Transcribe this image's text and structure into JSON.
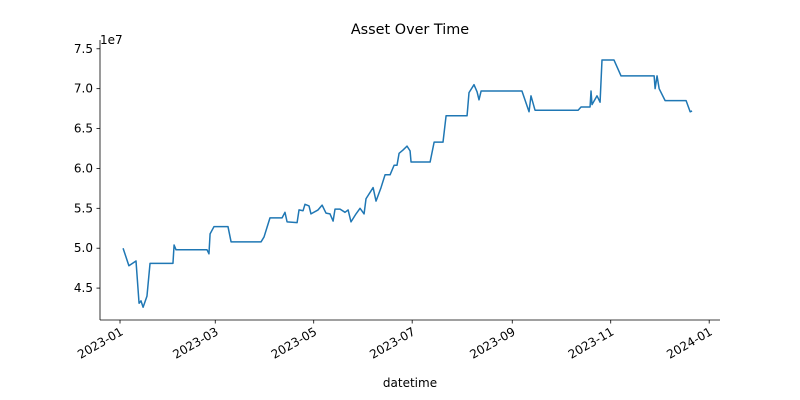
{
  "chart_data": {
    "type": "line",
    "title": "Asset Over Time",
    "x_label": "datetime",
    "y_offset_label": "1e7",
    "xlim": [
      -12.4,
      371.7
    ],
    "ylim": [
      4.1,
      7.61
    ],
    "xticks": [
      {
        "value": 0,
        "label": "2023-01"
      },
      {
        "value": 59,
        "label": "2023-03"
      },
      {
        "value": 120,
        "label": "2023-05"
      },
      {
        "value": 181,
        "label": "2023-07"
      },
      {
        "value": 243,
        "label": "2023-09"
      },
      {
        "value": 304,
        "label": "2023-11"
      },
      {
        "value": 365,
        "label": "2024-01"
      }
    ],
    "yticks": [
      4.5,
      {
        "value": 5,
        "label": "5.0"
      },
      5.5,
      {
        "value": 6,
        "label": "6.0"
      },
      6.5,
      {
        "value": 7,
        "label": "7.0"
      },
      7.5
    ],
    "series": [
      {
        "color": "#1f77b4",
        "x": [
          1.9,
          5.5,
          9.9,
          11.8,
          13,
          14.3,
          16.7,
          18.6,
          32.8,
          33.5,
          34.7,
          53.9,
          55.1,
          55.8,
          58.2,
          66.9,
          68.8,
          87.4,
          89.2,
          92.9,
          100.4,
          102.2,
          103.5,
          109.7,
          110.9,
          113.4,
          114.6,
          117.1,
          118.3,
          122.7,
          125.2,
          127.6,
          130.1,
          132,
          133.2,
          136.3,
          139.4,
          141.3,
          143.1,
          146.2,
          148.7,
          151.2,
          152.4,
          156.8,
          158.6,
          161.7,
          164.2,
          167.3,
          169.8,
          171.6,
          172.9,
          175.3,
          177.8,
          179.7,
          180.3,
          192.1,
          194.6,
          200.1,
          202,
          215,
          216.2,
          219.3,
          221.2,
          222.4,
          223.7,
          249,
          253.4,
          254.6,
          257.1,
          283.8,
          285.6,
          291.2,
          291.8,
          292.4,
          295.5,
          297.4,
          298.6,
          306,
          310.4,
          330.9,
          331.5,
          332.7,
          334,
          337.7,
          350.7,
          353.2,
          354.4
        ],
        "values": [
          5.0,
          4.78,
          4.84,
          4.31,
          4.34,
          4.26,
          4.4,
          4.81,
          4.81,
          5.04,
          4.98,
          4.98,
          4.93,
          5.18,
          5.27,
          5.27,
          5.08,
          5.08,
          5.14,
          5.38,
          5.38,
          5.45,
          5.33,
          5.32,
          5.48,
          5.47,
          5.55,
          5.53,
          5.43,
          5.48,
          5.54,
          5.44,
          5.43,
          5.34,
          5.49,
          5.49,
          5.45,
          5.48,
          5.33,
          5.43,
          5.5,
          5.43,
          5.62,
          5.76,
          5.59,
          5.76,
          5.92,
          5.92,
          6.04,
          6.04,
          6.19,
          6.23,
          6.28,
          6.22,
          6.08,
          6.08,
          6.33,
          6.33,
          6.66,
          6.66,
          6.95,
          7.05,
          6.96,
          6.86,
          6.97,
          6.97,
          6.71,
          6.91,
          6.73,
          6.73,
          6.77,
          6.77,
          6.97,
          6.8,
          6.91,
          6.83,
          7.36,
          7.36,
          7.16,
          7.16,
          7.0,
          7.16,
          7.0,
          6.85,
          6.85,
          6.71,
          6.72
        ]
      }
    ]
  }
}
